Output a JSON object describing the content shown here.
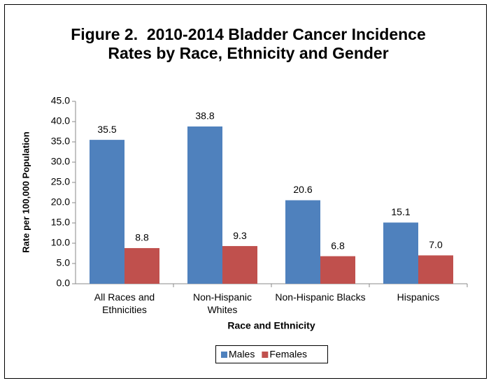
{
  "chart_data": {
    "type": "bar",
    "title": "Figure 2.  2010-2014 Bladder Cancer Incidence Rates by Race, Ethnicity and Gender",
    "categories": [
      "All Races and Ethnicities",
      "Non-Hispanic Whites",
      "Non-Hispanic Blacks",
      "Hispanics"
    ],
    "series": [
      {
        "name": "Males",
        "color": "#4f81bd",
        "values": [
          35.5,
          38.8,
          20.6,
          15.1
        ],
        "value_labels": [
          "35.5",
          "38.8",
          "20.6",
          "15.1"
        ]
      },
      {
        "name": "Females",
        "color": "#c0504d",
        "values": [
          8.8,
          9.3,
          6.8,
          7.0
        ],
        "value_labels": [
          "8.8",
          "9.3",
          "6.8",
          "7.0"
        ]
      }
    ],
    "ylabel": "Rate per 100,000  Population",
    "xlabel": "Race and Ethnicity",
    "ylim": [
      0,
      45
    ],
    "yticks": [
      {
        "value": 0,
        "label": "0.0"
      },
      {
        "value": 5,
        "label": "5.0"
      },
      {
        "value": 10,
        "label": "10.0"
      },
      {
        "value": 15,
        "label": "15.0"
      },
      {
        "value": 20,
        "label": "20.0"
      },
      {
        "value": 25,
        "label": "25.0"
      },
      {
        "value": 30,
        "label": "30.0"
      },
      {
        "value": 35,
        "label": "35.0"
      },
      {
        "value": 40,
        "label": "40.0"
      },
      {
        "value": 45,
        "label": "45.0"
      }
    ],
    "grid": false,
    "legend": "bottom"
  }
}
